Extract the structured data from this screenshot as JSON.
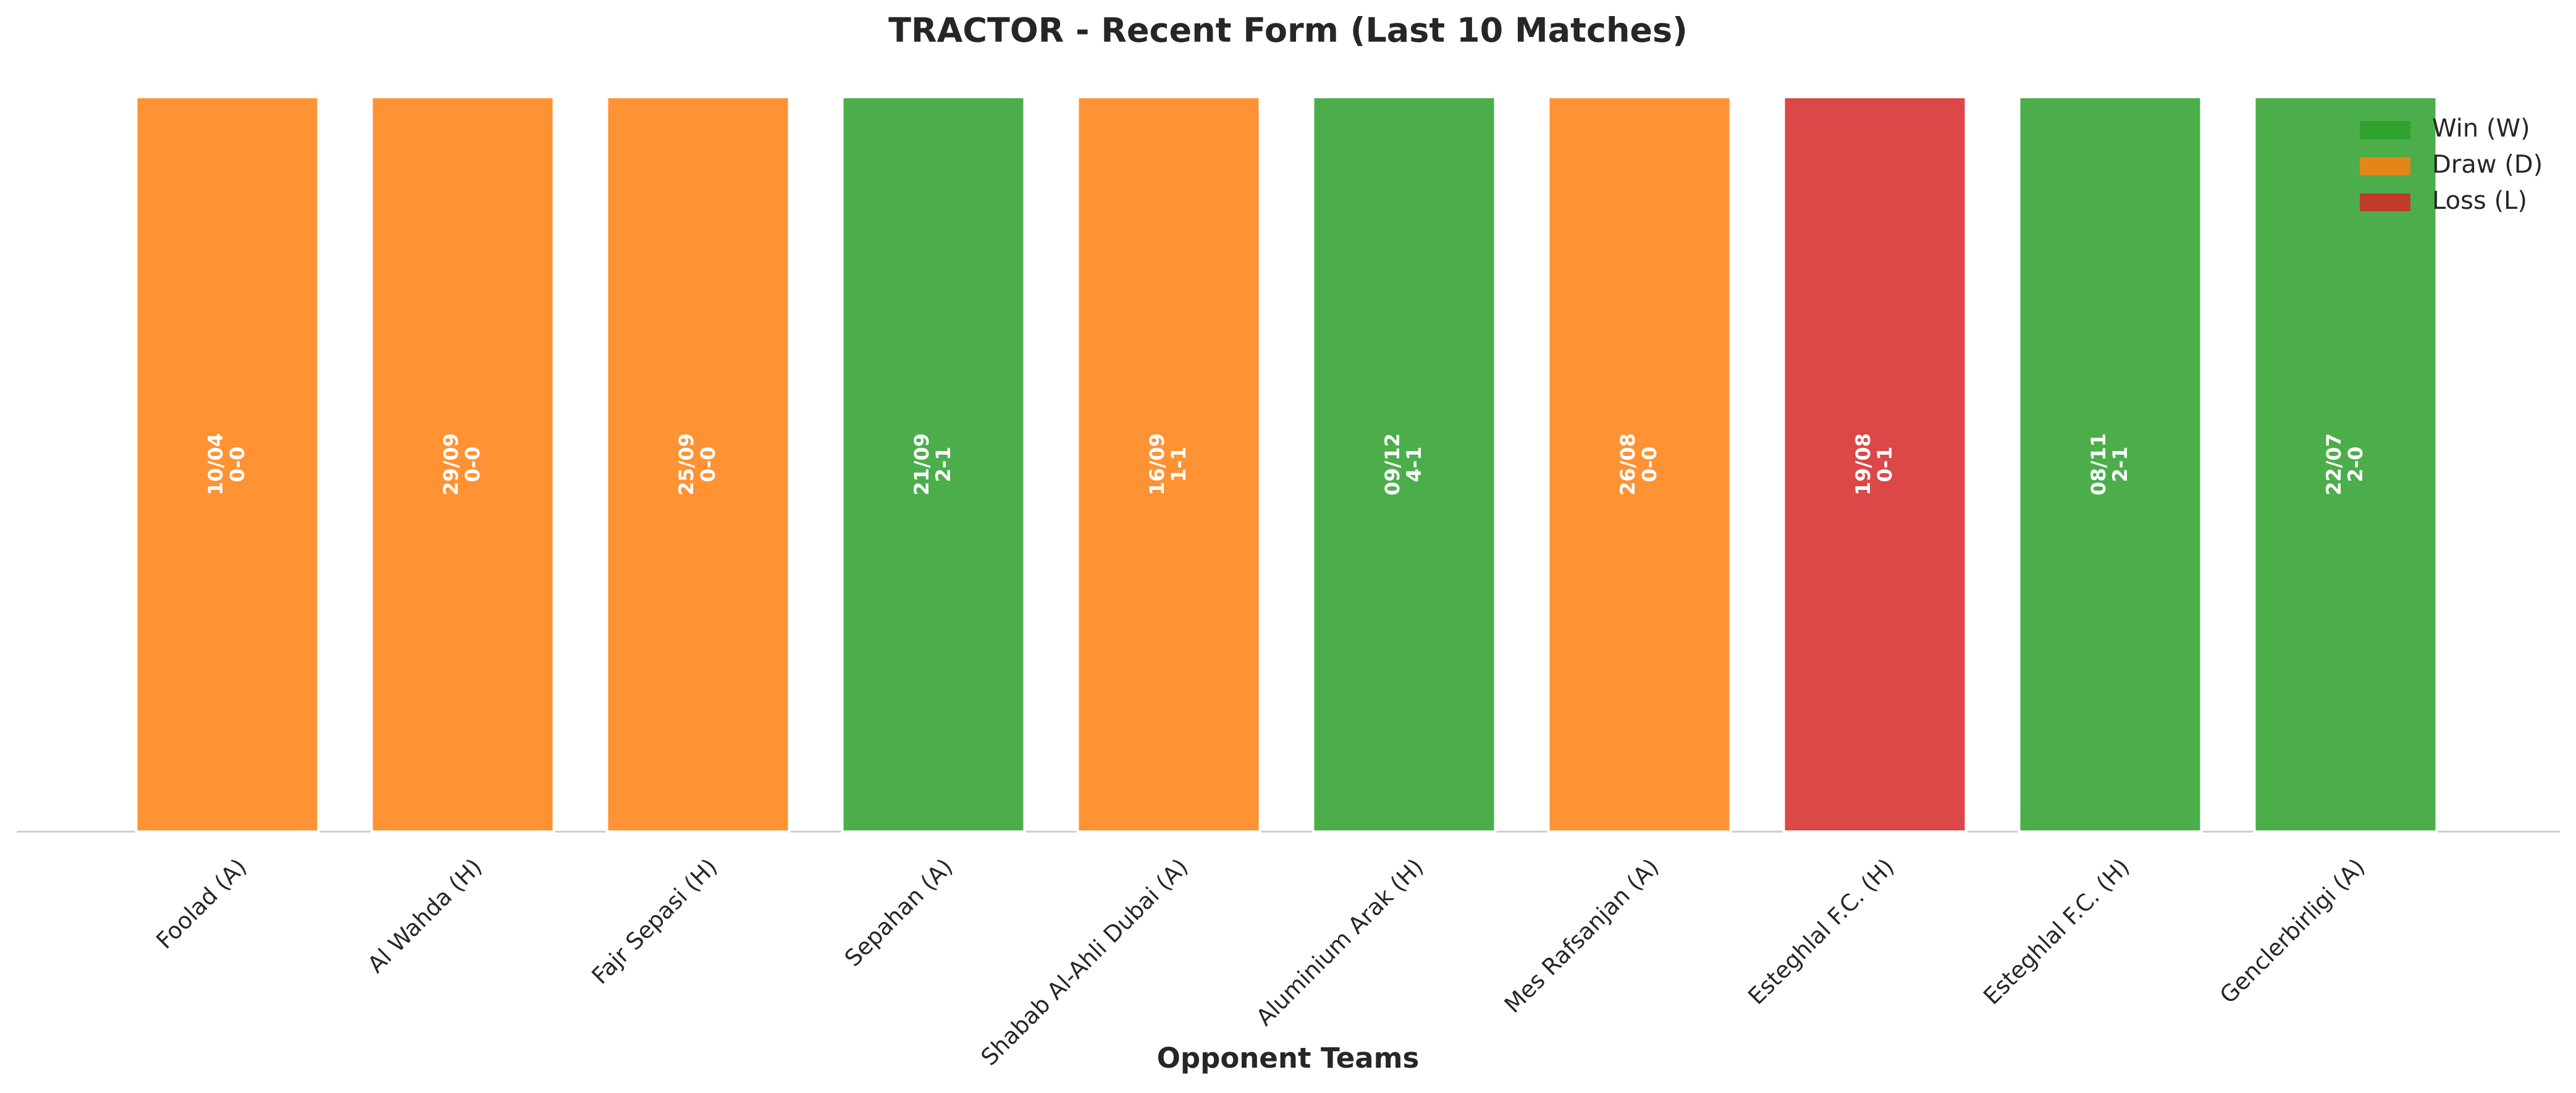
{
  "chart_data": {
    "type": "bar",
    "title": "TRACTOR - Recent Form (Last 10 Matches)",
    "x_label": "Opponent Teams",
    "categories": [
      "Foolad (A)",
      "Al Wahda (H)",
      "Fajr Sepasi (H)",
      "Sepahan (A)",
      "Shabab Al-Ahli Dubai (A)",
      "Aluminium Arak (H)",
      "Mes Rafsanjan (A)",
      "Esteghlal F.C. (H)",
      "Esteghlal F.C. (H)",
      "Genclerbirligi (A)"
    ],
    "values": [
      1,
      1,
      1,
      1,
      1,
      1,
      1,
      1,
      1,
      1
    ],
    "dates": [
      "10/04",
      "29/09",
      "25/09",
      "21/09",
      "16/09",
      "09/12",
      "26/08",
      "19/08",
      "08/11",
      "22/07"
    ],
    "scores": [
      "0-0",
      "0-0",
      "0-0",
      "2-1",
      "1-1",
      "4-1",
      "0-0",
      "0-1",
      "2-1",
      "2-0"
    ],
    "colors": [
      "#ff7f0e",
      "#ff7f0e",
      "#ff7f0e",
      "#2ca02c",
      "#ff7f0e",
      "#2ca02c",
      "#ff7f0e",
      "#d62728",
      "#2ca02c",
      "#2ca02c"
    ],
    "legend": [
      {
        "name": "Win (W)",
        "color": "#2ca02c"
      },
      {
        "name": "Draw (D)",
        "color": "#ff7f0e"
      },
      {
        "name": "Loss (L)",
        "color": "#d62728"
      }
    ],
    "legend_position": "upper right",
    "ylim": [
      0,
      1
    ]
  }
}
